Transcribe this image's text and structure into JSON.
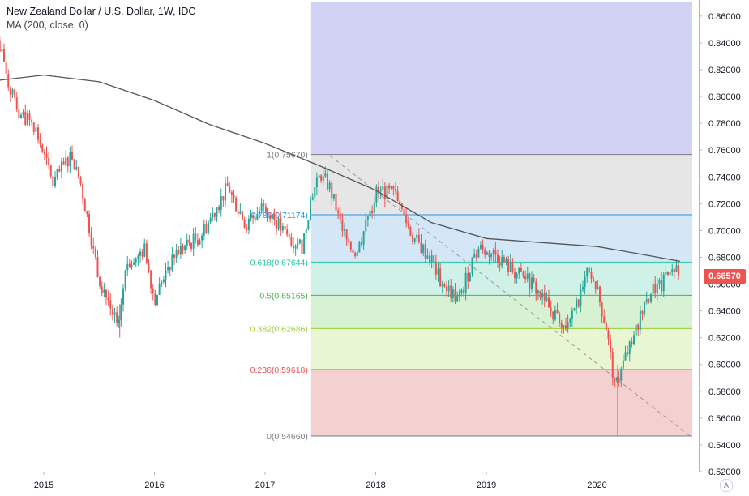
{
  "legend": {
    "title": "New Zealand Dollar / U.S. Dollar, 1W, IDC",
    "indicator": "MA (200, close, 0)"
  },
  "last_price_label": "0.66570",
  "auto_scale_label": "A",
  "colors": {
    "up": "#26a69a",
    "down": "#ef5350",
    "ma": "#555555",
    "last_price": "#ef5350"
  },
  "chart_data": {
    "type": "candlestick",
    "title": "New Zealand Dollar / U.S. Dollar, 1W, IDC",
    "xlabel": "",
    "ylabel": "",
    "x_ticks": [
      "2015",
      "2016",
      "2017",
      "2018",
      "2019",
      "2020"
    ],
    "y_ticks": [
      "0.86000",
      "0.84000",
      "0.82000",
      "0.80000",
      "0.78000",
      "0.76000",
      "0.74000",
      "0.72000",
      "0.70000",
      "0.68000",
      "0.66000",
      "0.64000",
      "0.62000",
      "0.60000",
      "0.58000",
      "0.56000",
      "0.54000",
      "0.52000"
    ],
    "ylim": [
      0.52,
      0.872
    ],
    "last_price": 0.6657,
    "fibonacci": {
      "start_date": "2017-06",
      "levels": [
        {
          "label": "1(0.75670)",
          "value": 0.7567,
          "color": "#787b86",
          "fill": "#e6e6e6"
        },
        {
          "label": "0.786(0.71174)",
          "value": 0.71174,
          "color": "#2196f3",
          "fill": "#d3e7f7"
        },
        {
          "label": "0.618(0.67644)",
          "value": 0.67644,
          "color": "#26c6a2",
          "fill": "#d0f1e7"
        },
        {
          "label": "0.5(0.65165)",
          "value": 0.65165,
          "color": "#4caf50",
          "fill": "#d6f2d2"
        },
        {
          "label": "0.382(0.62686)",
          "value": 0.62686,
          "color": "#9ccc33",
          "fill": "#e9f6d4"
        },
        {
          "label": "0.236(0.59618)",
          "value": 0.59618,
          "color": "#ef5350",
          "fill": "#f5d0d0"
        },
        {
          "label": "0(0.54660)",
          "value": 0.5466,
          "color": "#787b86",
          "fill": ""
        }
      ],
      "extension_fill": "#d2d2f5"
    },
    "trendline": [
      [
        "2017-08",
        0.756
      ],
      [
        "2020-11",
        0.547
      ]
    ],
    "ma_200": [
      [
        "2014-08",
        0.812
      ],
      [
        "2015-01",
        0.816
      ],
      [
        "2015-07",
        0.811
      ],
      [
        "2016-01",
        0.797
      ],
      [
        "2016-07",
        0.779
      ],
      [
        "2017-01",
        0.765
      ],
      [
        "2017-07",
        0.748
      ],
      [
        "2018-01",
        0.73
      ],
      [
        "2018-07",
        0.706
      ],
      [
        "2019-01",
        0.694
      ],
      [
        "2019-07",
        0.691
      ],
      [
        "2020-01",
        0.688
      ],
      [
        "2020-06",
        0.682
      ],
      [
        "2020-10",
        0.677
      ]
    ],
    "price_path": [
      [
        "2014-08",
        0.84
      ],
      [
        "2014-10",
        0.79
      ],
      [
        "2014-12",
        0.778
      ],
      [
        "2015-02",
        0.735
      ],
      [
        "2015-04",
        0.758
      ],
      [
        "2015-05",
        0.735
      ],
      [
        "2015-07",
        0.665
      ],
      [
        "2015-09",
        0.628
      ],
      [
        "2015-10",
        0.675
      ],
      [
        "2015-12",
        0.686
      ],
      [
        "2016-01",
        0.648
      ],
      [
        "2016-03",
        0.682
      ],
      [
        "2016-06",
        0.696
      ],
      [
        "2016-09",
        0.733
      ],
      [
        "2016-11",
        0.703
      ],
      [
        "2017-01",
        0.72
      ],
      [
        "2017-03",
        0.698
      ],
      [
        "2017-05",
        0.688
      ],
      [
        "2017-06",
        0.725
      ],
      [
        "2017-07",
        0.744
      ],
      [
        "2017-08",
        0.732
      ],
      [
        "2017-10",
        0.689
      ],
      [
        "2017-11",
        0.684
      ],
      [
        "2018-01",
        0.728
      ],
      [
        "2018-03",
        0.728
      ],
      [
        "2018-05",
        0.695
      ],
      [
        "2018-07",
        0.679
      ],
      [
        "2018-08",
        0.662
      ],
      [
        "2018-10",
        0.648
      ],
      [
        "2018-12",
        0.687
      ],
      [
        "2019-02",
        0.682
      ],
      [
        "2019-04",
        0.669
      ],
      [
        "2019-06",
        0.66
      ],
      [
        "2019-08",
        0.64
      ],
      [
        "2019-10",
        0.628
      ],
      [
        "2019-12",
        0.668
      ],
      [
        "2020-01",
        0.655
      ],
      [
        "2020-02",
        0.628
      ],
      [
        "2020-03",
        0.58
      ],
      [
        "2020-04",
        0.605
      ],
      [
        "2020-05",
        0.618
      ],
      [
        "2020-06",
        0.648
      ],
      [
        "2020-07",
        0.656
      ],
      [
        "2020-08",
        0.658
      ],
      [
        "2020-09",
        0.674
      ],
      [
        "2020-10",
        0.6657
      ]
    ]
  }
}
